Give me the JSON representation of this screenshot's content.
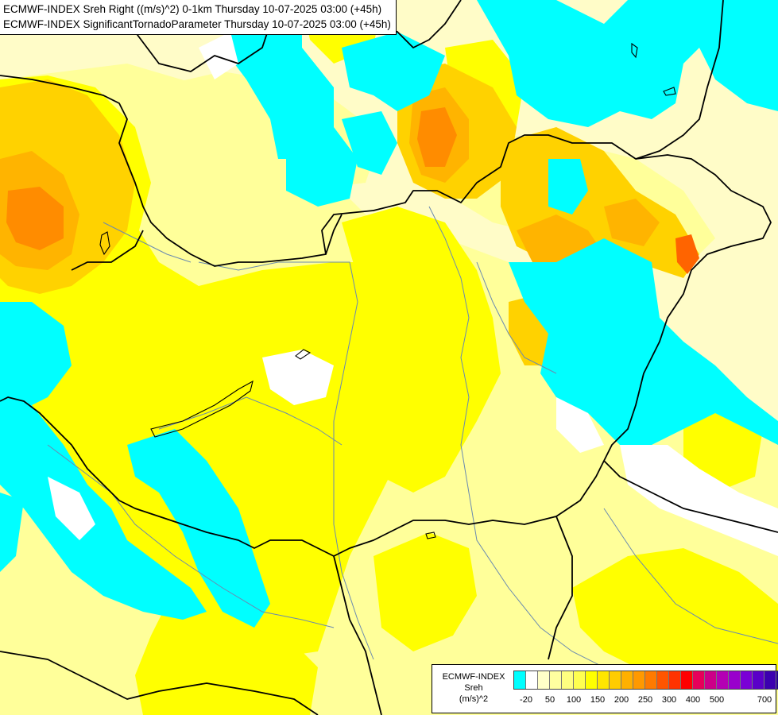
{
  "title": {
    "line1": "ECMWF-INDEX Sreh Right ((m/s)^2) 0-1km Thursday 10-07-2025 03:00 (+45h)",
    "line2": "ECMWF-INDEX SignificantTornadoParameter Thursday 10-07-2025 03:00 (+45h)"
  },
  "legend": {
    "model": "ECMWF-INDEX",
    "variable": "Sreh",
    "unit": "(m/s)^2",
    "colors": [
      "#00ffff",
      "#ffffff",
      "#ffffc8",
      "#ffffa0",
      "#ffff80",
      "#ffff50",
      "#ffff00",
      "#ffe600",
      "#ffcc00",
      "#ffb000",
      "#ff9900",
      "#ff7a00",
      "#ff5500",
      "#ff3300",
      "#ff0000",
      "#e6005a",
      "#cc0088",
      "#b400b4",
      "#9900cc",
      "#7a00d6",
      "#5a00c8",
      "#3c00b0",
      "#220090",
      "#0a0070"
    ],
    "ticks": [
      "-20",
      "50",
      "100",
      "150",
      "200",
      "250",
      "300",
      "400",
      "500",
      "700"
    ]
  },
  "colors": {
    "cyan": "#00ffff",
    "white": "#ffffff",
    "pale": "#fffcc8",
    "light_yellow": "#ffff9a",
    "yellow": "#ffff00",
    "gold": "#ffd200",
    "orange": "#ffb400",
    "dark_orange": "#ff8c00",
    "red_orange": "#ff6400",
    "border": "#000000",
    "river": "#6a8ab0"
  }
}
